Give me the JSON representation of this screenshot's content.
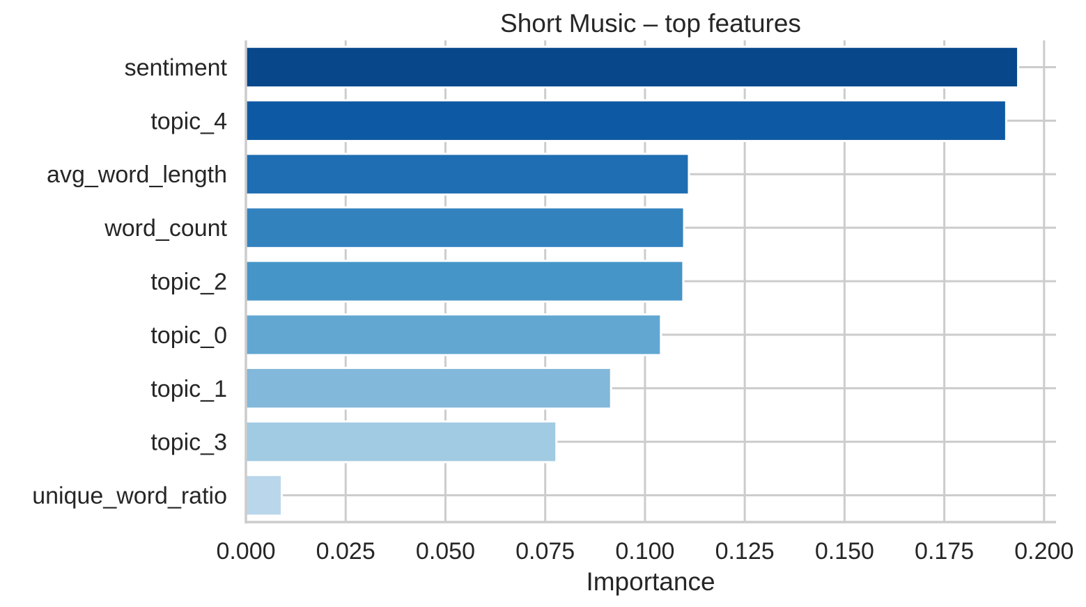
{
  "chart_data": {
    "type": "bar",
    "orientation": "horizontal",
    "title": "Short Music – top features",
    "xlabel": "Importance",
    "ylabel": "",
    "categories": [
      "sentiment",
      "topic_4",
      "avg_word_length",
      "word_count",
      "topic_2",
      "topic_0",
      "topic_1",
      "topic_3",
      "unique_word_ratio"
    ],
    "values": [
      0.1935,
      0.1905,
      0.111,
      0.1098,
      0.1096,
      0.104,
      0.0915,
      0.0778,
      0.009
    ],
    "colors": [
      "#08478a",
      "#0e59a3",
      "#1f6db2",
      "#3282be",
      "#4695c8",
      "#62a7d2",
      "#82b8d9",
      "#a1cbe2",
      "#bad6eb"
    ],
    "xticks": [
      "0.000",
      "0.025",
      "0.050",
      "0.075",
      "0.100",
      "0.125",
      "0.150",
      "0.175",
      "0.200"
    ],
    "xlim": [
      0,
      0.203
    ],
    "grid": true
  }
}
